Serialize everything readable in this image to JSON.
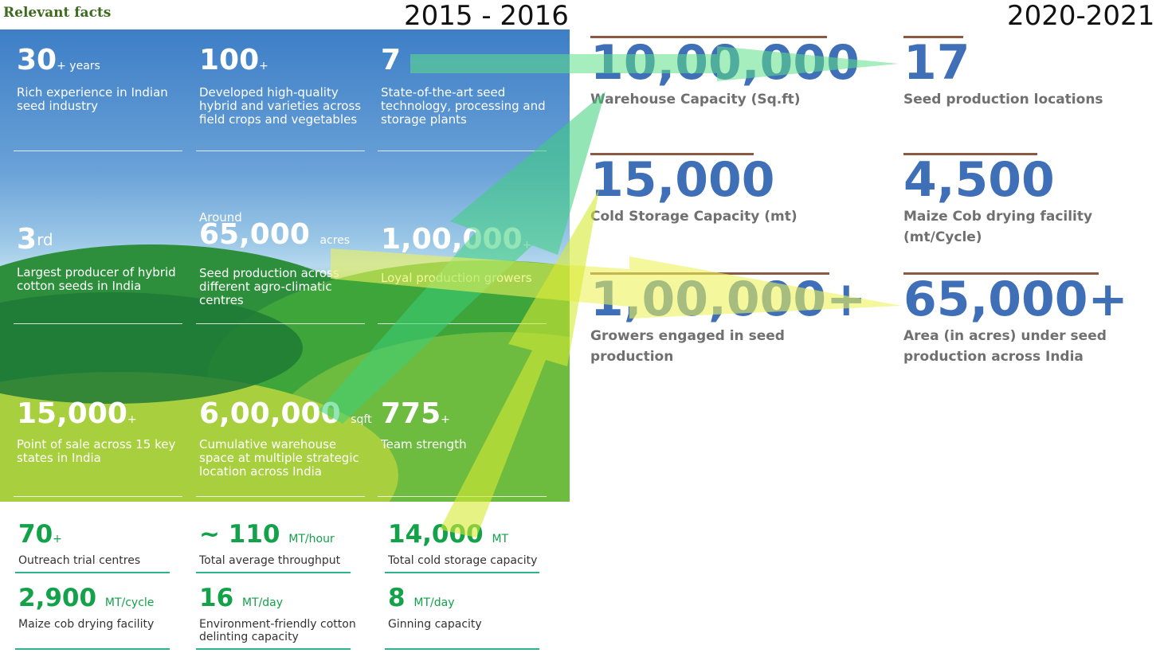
{
  "section_title": "Relevant facts",
  "year_left": "2015 - 2016",
  "year_right": "2020-2021",
  "panel_stats": [
    {
      "prefix": "",
      "value": "30",
      "suffix": "+ years",
      "desc": "Rich experience in Indian seed industry"
    },
    {
      "prefix": "",
      "value": "100",
      "suffix": "+",
      "desc": "Developed high-quality hybrid and varieties across field crops and vegetables"
    },
    {
      "prefix": "",
      "value": "7",
      "suffix": "",
      "desc": "State-of-the-art seed technology, processing and storage plants"
    },
    {
      "prefix": "",
      "value": "3",
      "suffix": "rd",
      "desc": "Largest producer of hybrid cotton seeds in India"
    },
    {
      "prefix": "Around",
      "value": "65,000",
      "suffix": "acres",
      "desc": "Seed production across different agro-climatic centres"
    },
    {
      "prefix": "",
      "value": "1,00,000",
      "suffix": "+",
      "desc": "Loyal production growers"
    },
    {
      "prefix": "",
      "value": "15,000",
      "suffix": "+",
      "desc": "Point of sale across 15 key states in India"
    },
    {
      "prefix": "",
      "value": "6,00,000",
      "suffix": "sqft",
      "desc": "Cumulative warehouse space at multiple strategic location across India"
    },
    {
      "prefix": "",
      "value": "775",
      "suffix": "+",
      "desc": "Team strength"
    }
  ],
  "lower_stats": [
    {
      "value": "70",
      "suffix": "+",
      "desc": "Outreach trial centres"
    },
    {
      "value": "~ 110",
      "suffix": "MT/hour",
      "desc": "Total average throughput"
    },
    {
      "value": "14,000",
      "suffix": "MT",
      "desc": "Total cold storage capacity"
    },
    {
      "value": "2,900",
      "suffix": "MT/cycle",
      "desc": "Maize cob drying facility"
    },
    {
      "value": "16",
      "suffix": "MT/day",
      "desc": "Environment-friendly cotton delinting capacity"
    },
    {
      "value": "8",
      "suffix": "MT/day",
      "desc": "Ginning capacity"
    }
  ],
  "right_stats": [
    {
      "value": "10,00,000",
      "desc": "Warehouse Capacity (Sq.ft)"
    },
    {
      "value": "17",
      "desc": "Seed production locations"
    },
    {
      "value": "15,000",
      "desc": "Cold Storage Capacity (mt)"
    },
    {
      "value": "4,500",
      "desc": "Maize Cob drying facility (mt/Cycle)"
    },
    {
      "value": "1,00,000+",
      "desc": "Growers engaged in seed production"
    },
    {
      "value": "65,000+",
      "desc": "Area (in acres) under seed production across India"
    }
  ],
  "colors": {
    "title_green": "#3d6b1e",
    "lower_green": "#13a14a",
    "right_blue": "#3e6fb7",
    "rule_brown": "#8a5a44",
    "arrow_green": "#5fe08a",
    "arrow_yellow": "#e8f04a"
  }
}
